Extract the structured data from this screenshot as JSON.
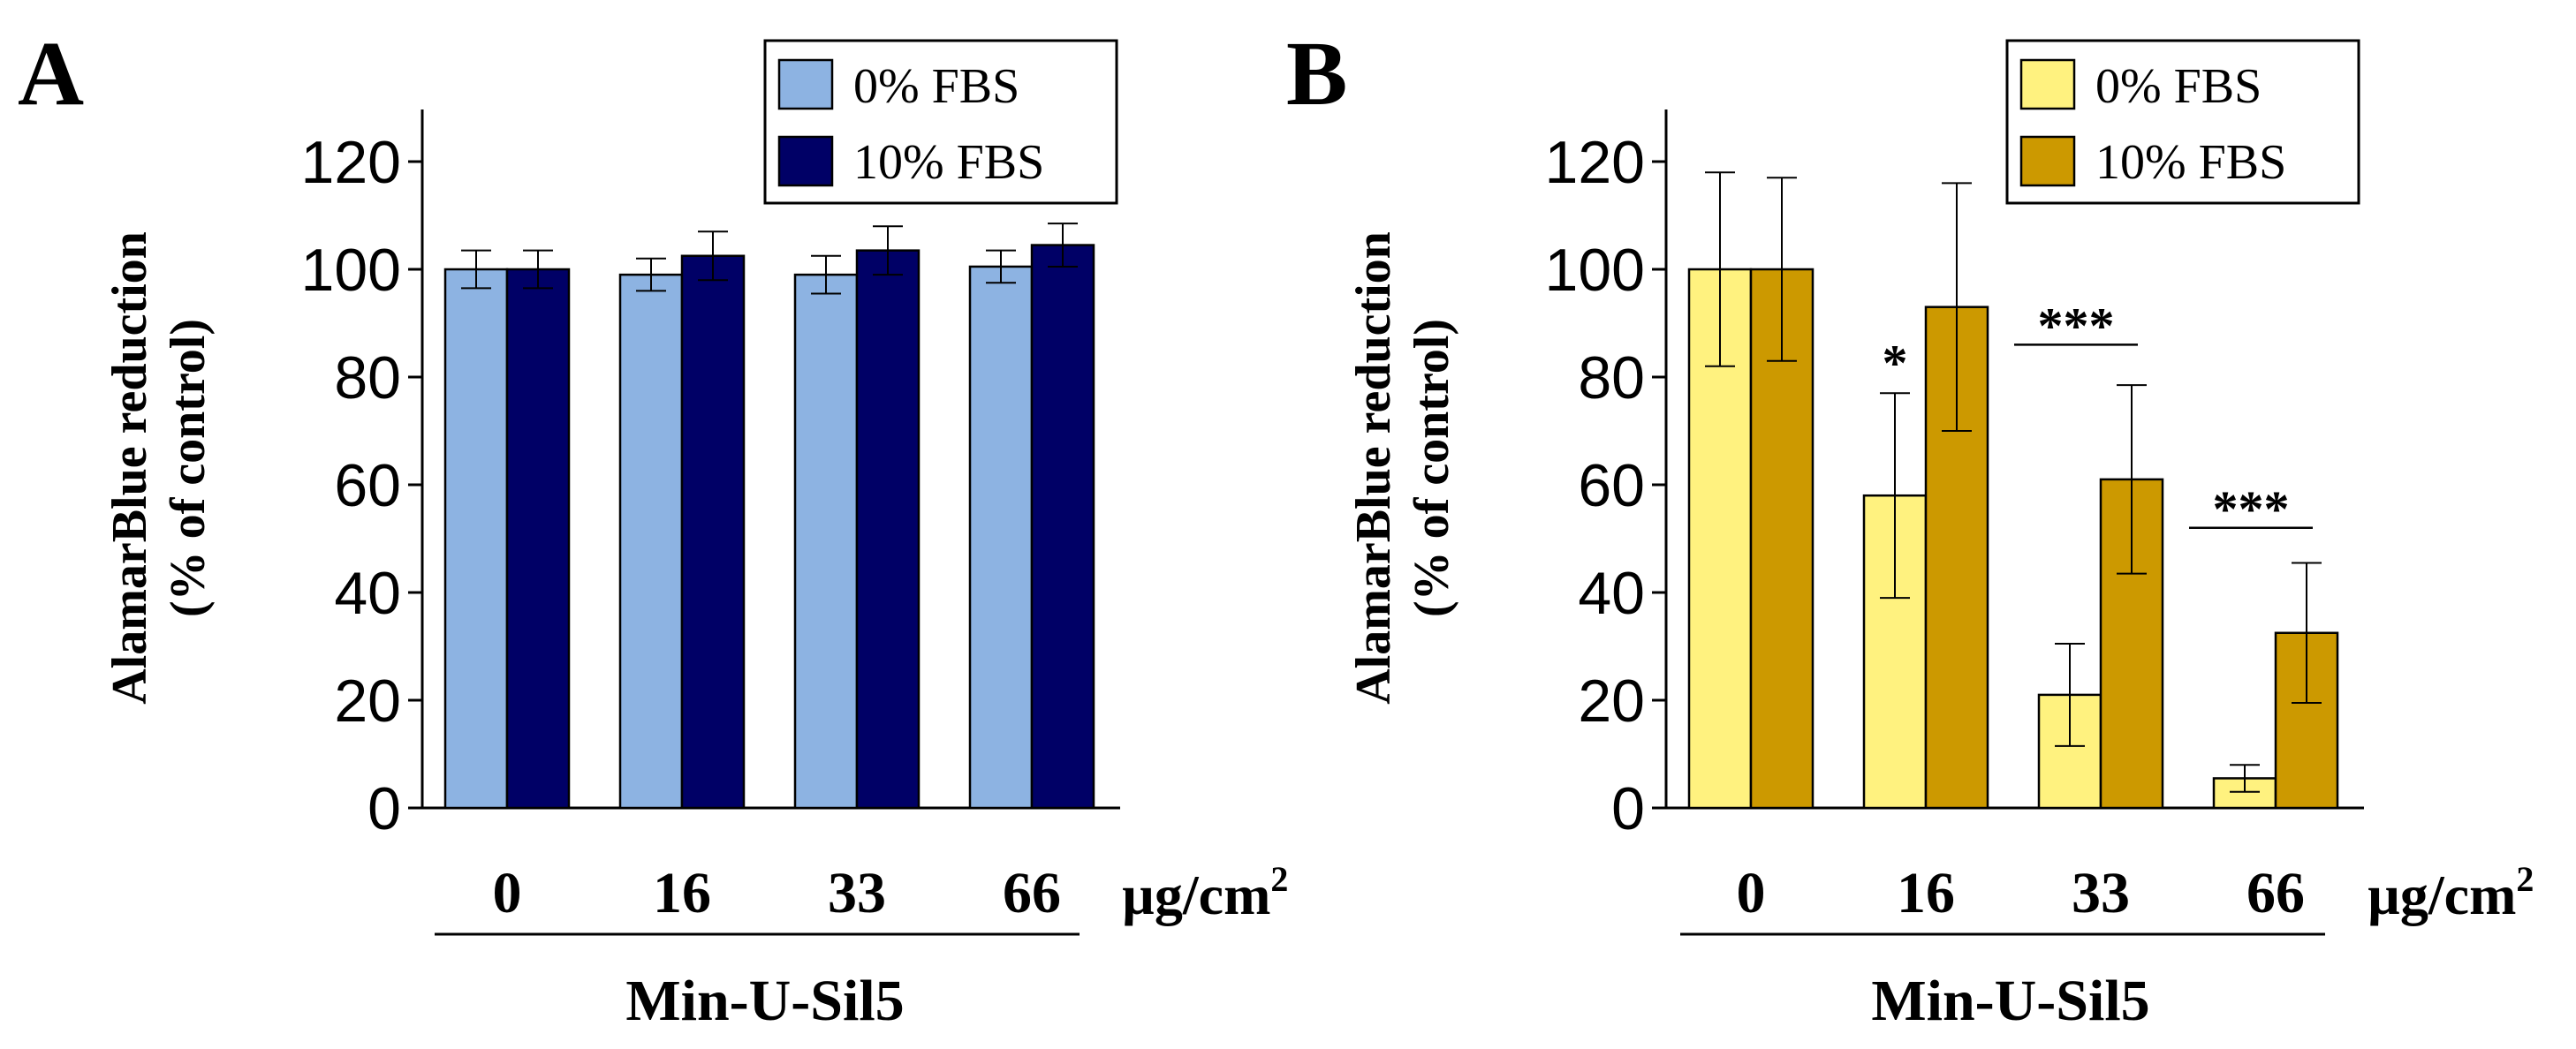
{
  "chart_data": [
    {
      "type": "bar",
      "panel": "A",
      "title": "",
      "xlabel": "Min-U-Sil5",
      "x_unit": "µg/cm",
      "x_unit_sup": "2",
      "ylabel": [
        "AlamarBlue reduction",
        "(% of  control)"
      ],
      "ylim": [
        0,
        130
      ],
      "yticks": [
        0,
        20,
        40,
        60,
        80,
        100,
        120
      ],
      "categories": [
        "0",
        "16",
        "33",
        "66"
      ],
      "legend_position": "top-right",
      "series": [
        {
          "name": "0% FBS",
          "color": "#8db3e2",
          "values": [
            100,
            99,
            99,
            100.5
          ],
          "errors": [
            3.5,
            3,
            3.5,
            3
          ]
        },
        {
          "name": "10% FBS",
          "color": "#000066",
          "values": [
            100,
            102.5,
            103.5,
            104.5
          ],
          "errors": [
            3.5,
            4.5,
            4.5,
            4
          ]
        }
      ],
      "significance": []
    },
    {
      "type": "bar",
      "panel": "B",
      "title": "",
      "xlabel": "Min-U-Sil5",
      "x_unit": "µg/cm",
      "x_unit_sup": "2",
      "ylabel": [
        "AlamarBlue reduction",
        "(% of  control)"
      ],
      "ylim": [
        0,
        130
      ],
      "yticks": [
        0,
        20,
        40,
        60,
        80,
        100,
        120
      ],
      "categories": [
        "0",
        "16",
        "33",
        "66"
      ],
      "legend_position": "top-right",
      "series": [
        {
          "name": "0% FBS",
          "color": "#fff27f",
          "values": [
            100,
            58,
            21,
            5.5
          ],
          "errors": [
            18,
            19,
            9.5,
            2.5
          ]
        },
        {
          "name": "10% FBS",
          "color": "#cc9900",
          "values": [
            100,
            93,
            61,
            32.5
          ],
          "errors": [
            17,
            23,
            17.5,
            13
          ]
        }
      ],
      "significance": [
        {
          "category_index": 1,
          "label": "*",
          "y": 86,
          "bracket": false
        },
        {
          "category_index": 2,
          "label": "***",
          "y": 86,
          "bracket": true
        },
        {
          "category_index": 3,
          "label": "***",
          "y": 52,
          "bracket": true
        }
      ]
    }
  ]
}
